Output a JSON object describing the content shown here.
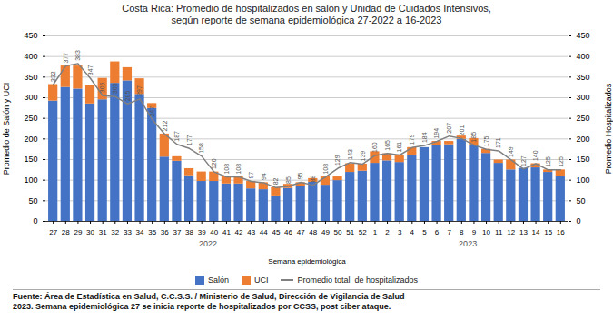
{
  "chart_data": {
    "type": "bar",
    "title": "Costa Rica: Promedio de hospitalizados en salón y Unidad de Cuidados Intensivos,",
    "subtitle": "según reporte de semana epidemiológica 27-2022 a 16-2023",
    "xlabel": "Semana epidemiológica",
    "ylabel": "Promedio de Salón y UCI",
    "y2label": "Promedio Hospitalizados",
    "categories": [
      "27",
      "28",
      "29",
      "30",
      "31",
      "32",
      "33",
      "34",
      "35",
      "36",
      "37",
      "38",
      "39",
      "40",
      "41",
      "42",
      "43",
      "44",
      "45",
      "46",
      "47",
      "48",
      "49",
      "50",
      "51",
      "52",
      "1",
      "2",
      "3",
      "4",
      "5",
      "6",
      "7",
      "8",
      "9",
      "10",
      "11",
      "12",
      "13",
      "14",
      "15",
      "16"
    ],
    "series": [
      {
        "name": "Salón",
        "type": "bar",
        "color": "#4472C4",
        "values": [
          292,
          325,
          321,
          285,
          295,
          335,
          341,
          308,
          274,
          156,
          146,
          111,
          97,
          97,
          91,
          91,
          79,
          77,
          62,
          80,
          85,
          95,
          88,
          99,
          119,
          122,
          141,
          147,
          143,
          161,
          179,
          184,
          186,
          199,
          185,
          165,
          141,
          125,
          129,
          130,
          119,
          109
        ]
      },
      {
        "name": "UCI",
        "type": "bar",
        "color": "#ED7D31",
        "values": [
          40,
          52,
          56,
          44,
          52,
          52,
          32,
          38,
          12,
          56,
          11,
          17,
          23,
          23,
          17,
          17,
          18,
          17,
          20,
          10,
          9,
          9,
          20,
          9,
          21,
          17,
          28,
          17,
          17,
          18,
          0,
          10,
          8,
          8,
          16,
          10,
          8,
          24,
          0,
          10,
          6,
          16
        ]
      },
      {
        "name": "Promedio total  de hospitalizados",
        "type": "line",
        "color": "#808080",
        "data_labels": true,
        "values": [
          332,
          377,
          383,
          347,
          305,
          303,
          285,
          297,
          247,
          212,
          187,
          177,
          158,
          120,
          108,
          108,
          97,
          94,
          82,
          85,
          95,
          88,
          108,
          129,
          143,
          139,
          160,
          165,
          161,
          179,
          184,
          194,
          207,
          201,
          185,
          175,
          171,
          149,
          127,
          140,
          125,
          125
        ]
      }
    ],
    "stacked": true,
    "grid": true,
    "legend": "bottom",
    "ylim": [
      0,
      450
    ],
    "yticks": [
      0,
      50,
      100,
      150,
      200,
      250,
      300,
      350,
      400,
      450
    ],
    "y2lim": [
      0,
      450
    ],
    "y2ticks": [
      0,
      50,
      100,
      150,
      200,
      250,
      300,
      350,
      400,
      450
    ],
    "annotations": [
      {
        "text": "2022",
        "from": "27",
        "to": "52"
      },
      {
        "text": "2023",
        "from": "1",
        "to": "16"
      }
    ],
    "footnotes": [
      "Fuente: Área de Estadística en Salud, C.C.S.S. / Ministerio de Salud, Dirección de Vigilancia de Salud",
      "2023. Semana epidemiológica 27 se inicia reporte de hospitalizados por CCSS, post ciber ataque."
    ]
  }
}
